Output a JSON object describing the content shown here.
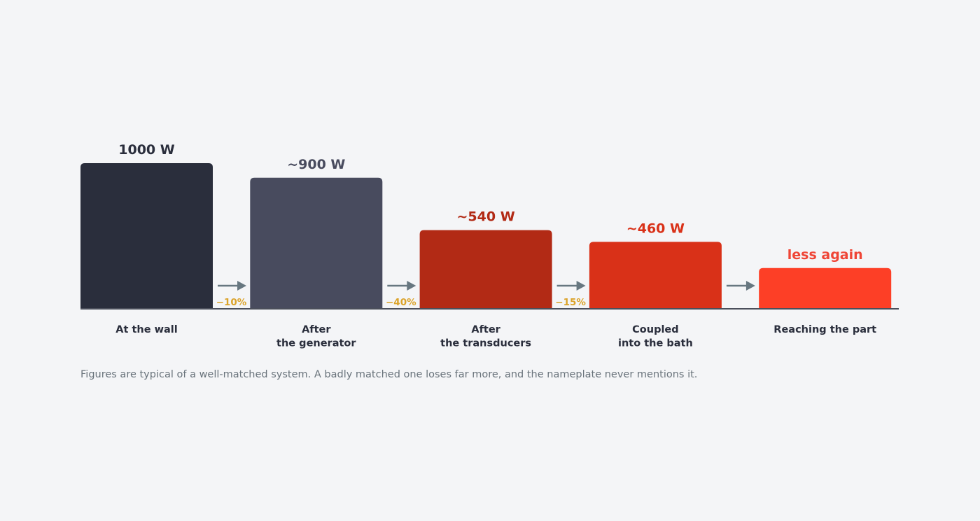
{
  "chart_data": {
    "type": "bar",
    "categories": [
      [
        "At the wall"
      ],
      [
        "After",
        "the generator"
      ],
      [
        "After",
        "the transducers"
      ],
      [
        "Coupled",
        "into the bath"
      ],
      [
        "Reaching the part"
      ]
    ],
    "values": [
      1000,
      900,
      540,
      460,
      280
    ],
    "value_labels": [
      "1000 W",
      "~900 W",
      "~540 W",
      "~460 W",
      "less again"
    ],
    "losses": [
      "−10%",
      "−40%",
      "−15%",
      ""
    ],
    "ylim": [
      0,
      1000
    ],
    "grid": false,
    "legend": "none",
    "colors": {
      "bars": [
        "#2a2e3c",
        "#484b5e",
        "#b22a15",
        "#d93118",
        "#fd3f26"
      ],
      "value_labels": [
        "#2a2e3c",
        "#484b5e",
        "#b22a15",
        "#d93118",
        "#ef4536"
      ],
      "arrow": "#677780",
      "baseline": "#4b4f5b",
      "loss": "#dba32b"
    }
  },
  "footnote": "Figures are typical of a well-matched system. A badly matched one loses far more, and the nameplate never mentions it."
}
